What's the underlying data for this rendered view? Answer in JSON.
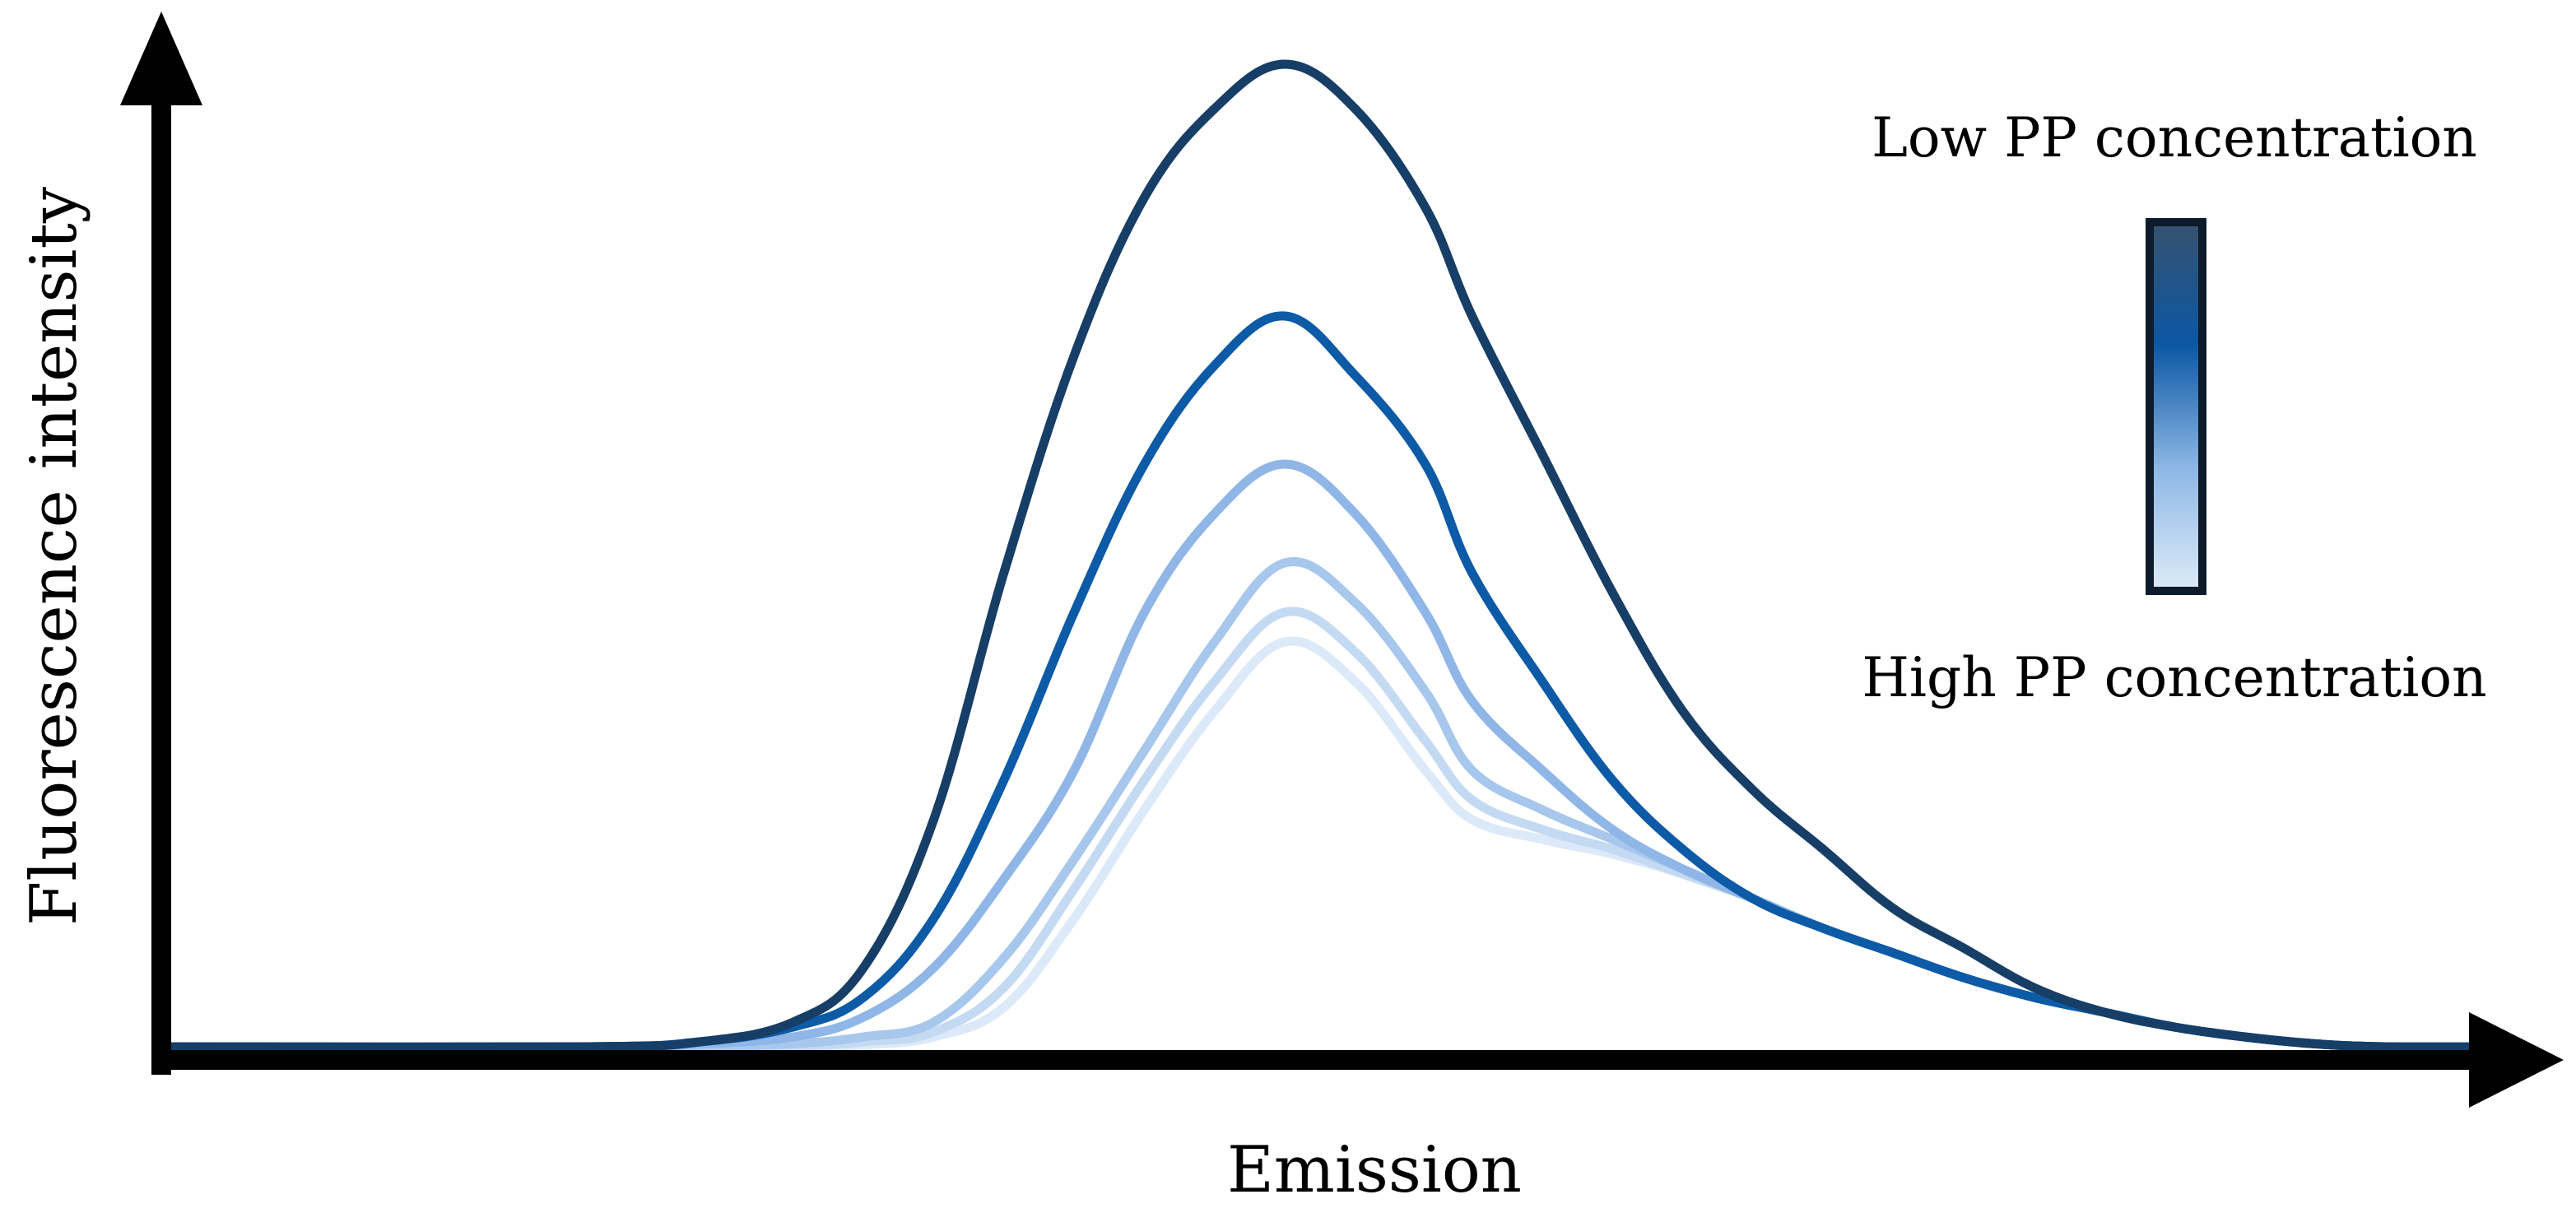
{
  "chart_data": {
    "type": "line",
    "title": "",
    "xlabel": "Emission",
    "ylabel": "Fluorescence intensity",
    "grid": false,
    "axis_ticks": false,
    "xlim": [
      0,
      100
    ],
    "ylim": [
      0,
      100
    ],
    "legend": {
      "type": "color-gradient",
      "placement": "top-right",
      "label_top": "Low PP concentration",
      "label_bottom": "High PP concentration",
      "gradient_colors": [
        "#36526f",
        "#0c57a4",
        "#8db7e5",
        "#deebf8"
      ]
    },
    "series": [
      {
        "color": "#163e66",
        "x": [
          0,
          18,
          23,
          27,
          30,
          33,
          36,
          39,
          42,
          45,
          48,
          51,
          54,
          56,
          59,
          62,
          65,
          68,
          71,
          74,
          77,
          80,
          83,
          86,
          89,
          92,
          95,
          100
        ],
        "values": [
          0,
          0,
          0.5,
          2.5,
          8,
          23,
          48,
          70,
          86,
          95,
          99.5,
          95,
          85,
          74,
          60,
          46,
          34,
          26,
          20,
          14,
          10,
          6,
          3.5,
          2,
          1,
          0.3,
          0,
          0
        ]
      },
      {
        "color": "#0d5aa6",
        "x": [
          0,
          18,
          23,
          27,
          30,
          33,
          36,
          39,
          42,
          45,
          48,
          51,
          54,
          56,
          59,
          62,
          65,
          68,
          71,
          74,
          77,
          80,
          83,
          86,
          89,
          92,
          95,
          100
        ],
        "values": [
          0,
          0,
          0.5,
          2,
          5,
          13,
          27,
          44,
          59,
          69,
          74,
          68,
          59,
          48,
          37,
          27,
          20,
          15,
          12,
          9.5,
          7,
          5,
          3.5,
          2,
          1,
          0.3,
          0,
          0
        ]
      },
      {
        "color": "#8fb6e6",
        "x": [
          0,
          18,
          23,
          27,
          30,
          33,
          36,
          39,
          42,
          45,
          48,
          51,
          54,
          56,
          59,
          62,
          65,
          68,
          71,
          74,
          77,
          80,
          83,
          86,
          89,
          92,
          95,
          100
        ],
        "values": [
          0,
          0,
          0.3,
          1,
          3,
          8,
          17,
          28,
          44,
          54,
          59,
          54,
          44,
          35,
          28,
          22,
          18,
          15,
          12,
          9.5,
          7,
          5,
          3.5,
          2,
          1,
          0.3,
          0,
          0
        ]
      },
      {
        "color": "#a7c7ec",
        "x": [
          0,
          18,
          23,
          27,
          30,
          33,
          36,
          39,
          42,
          45,
          48,
          51,
          54,
          56,
          59,
          62,
          65,
          68,
          71,
          74,
          77,
          80,
          83,
          86,
          89,
          92,
          95,
          100
        ],
        "values": [
          0,
          0,
          0,
          0.3,
          1,
          2.5,
          9,
          19,
          30,
          41,
          49,
          45,
          36,
          28,
          24,
          21,
          18,
          15,
          12,
          9.5,
          7,
          5,
          3.5,
          2,
          1,
          0.3,
          0,
          0
        ]
      },
      {
        "color": "#c4daf3",
        "x": [
          0,
          18,
          23,
          27,
          30,
          33,
          36,
          39,
          42,
          45,
          48,
          51,
          54,
          56,
          59,
          62,
          65,
          68,
          71,
          74,
          77,
          80,
          83,
          86,
          89,
          92,
          95,
          100
        ],
        "values": [
          0,
          0,
          0,
          0,
          0.5,
          1.5,
          6,
          16,
          27,
          37,
          44,
          40,
          31,
          25,
          22,
          20,
          17.5,
          15,
          12,
          9.5,
          7,
          5,
          3.5,
          2,
          1,
          0.3,
          0,
          0
        ]
      },
      {
        "color": "#dbe9f8",
        "x": [
          0,
          18,
          23,
          27,
          30,
          33,
          36,
          39,
          42,
          45,
          48,
          51,
          54,
          56,
          59,
          62,
          65,
          68,
          71,
          74,
          77,
          80,
          83,
          86,
          89,
          92,
          95,
          100
        ],
        "values": [
          0,
          0,
          0,
          0,
          0.2,
          1,
          4,
          13,
          24,
          34,
          41,
          37,
          28,
          23,
          21,
          19.5,
          17.5,
          15,
          12,
          9.5,
          7,
          5,
          3.5,
          2,
          1,
          0.3,
          0,
          0
        ]
      }
    ]
  }
}
